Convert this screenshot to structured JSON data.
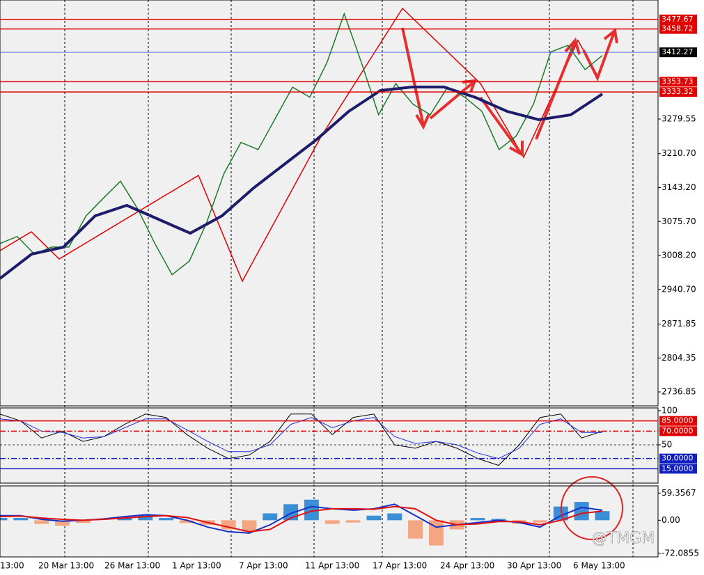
{
  "chart_data": [
    {
      "type": "line",
      "panel": "main",
      "ylim": [
        2709.2,
        3516.3
      ],
      "yticks": [
        {
          "value": 3279.55,
          "label": "3279.55"
        },
        {
          "value": 3210.7,
          "label": "3210.70"
        },
        {
          "value": 3143.2,
          "label": "3143.20"
        },
        {
          "value": 3075.7,
          "label": "3075.70"
        },
        {
          "value": 3008.2,
          "label": "3008.20"
        },
        {
          "value": 2940.7,
          "label": "2940.70"
        },
        2871.85,
        2804.35,
        2736.85
      ],
      "levels": [
        {
          "value": 3477.67,
          "label": "3477.67",
          "color": "#e00000"
        },
        {
          "value": 3458.72,
          "label": "3458.72",
          "color": "#e00000"
        },
        {
          "value": 3412.27,
          "label": "3412.27",
          "color": "#3050e0"
        },
        {
          "value": 3353.73,
          "label": "3353.73",
          "color": "#e00000"
        },
        {
          "value": 3333.32,
          "label": "3333.32",
          "color": "#e00000"
        }
      ],
      "series": [
        {
          "color": "#1b7a2a",
          "width": 1.5,
          "values": [
            3032,
            3046,
            3011,
            3025,
            3025,
            3087,
            3122,
            3156,
            3101,
            3032,
            2970,
            2997,
            3073,
            3170,
            3233,
            3219,
            3281,
            3343,
            3323,
            3392,
            3489,
            3392,
            3288,
            3350,
            3309,
            3288,
            3343,
            3323,
            3295,
            3219,
            3246,
            3309,
            3413,
            3426,
            3378,
            3406
          ]
        },
        {
          "color": "#1c1c6b",
          "width": 4,
          "values": [
            2962.5,
            3011,
            3024.8,
            3087,
            3107.9,
            3080.2,
            3052.5,
            3087,
            3142.5,
            3191,
            3239.5,
            3294.8,
            3336.3,
            3343.3,
            3343.3,
            3322.5,
            3294.8,
            3278.2,
            3287.9,
            3329.4
          ]
        }
      ]
    },
    {
      "type": "line",
      "panel": "stoch",
      "ylim": [
        -6,
        104
      ],
      "yticks": [
        100,
        50
      ],
      "levels": [
        {
          "value": 85,
          "label": "85.0000",
          "color": "#e00000"
        },
        {
          "value": 70,
          "label": "70.0000",
          "color": "#e00000"
        },
        {
          "value": 30,
          "label": "30.0000",
          "color": "#1020c0"
        },
        {
          "value": 15,
          "label": "15.0000",
          "color": "#1020c0"
        }
      ],
      "series": [
        {
          "color": "#000000",
          "width": 1,
          "values": [
            95,
            85,
            60,
            70,
            55,
            62,
            80,
            95,
            90,
            65,
            45,
            30,
            35,
            55,
            95,
            95,
            65,
            90,
            95,
            50,
            45,
            55,
            45,
            30,
            20,
            50,
            90,
            95,
            60,
            70
          ]
        },
        {
          "color": "#2030e0",
          "width": 1,
          "values": [
            88,
            85,
            70,
            68,
            60,
            62,
            75,
            88,
            88,
            72,
            55,
            40,
            40,
            50,
            80,
            90,
            75,
            85,
            90,
            62,
            52,
            55,
            50,
            38,
            30,
            45,
            80,
            88,
            68,
            68
          ]
        }
      ]
    },
    {
      "type": "bar",
      "panel": "macd",
      "ylim": [
        -80,
        75
      ],
      "yticks": [
        59.3567,
        {
          "value": 0,
          "label": "0.00"
        },
        -72.0855
      ],
      "pos_color": "#3a8fd6",
      "neg_color": "#f4a582",
      "values": [
        5,
        5,
        -8,
        -12,
        -6,
        0,
        6,
        12,
        5,
        -6,
        -10,
        -20,
        -25,
        15,
        35,
        45,
        -8,
        -5,
        10,
        15,
        -40,
        -55,
        -20,
        5,
        3,
        -8,
        -5,
        30,
        40,
        20
      ],
      "series": [
        {
          "color": "#1530c8",
          "width": 2,
          "values": [
            10,
            10,
            2,
            -2,
            0,
            3,
            8,
            12,
            10,
            0,
            -15,
            -25,
            -28,
            -10,
            15,
            30,
            25,
            22,
            25,
            35,
            10,
            -15,
            -10,
            -5,
            0,
            -5,
            -15,
            10,
            28,
            22
          ]
        },
        {
          "color": "#e01010",
          "width": 2,
          "values": [
            8,
            9,
            5,
            2,
            0,
            2,
            5,
            8,
            10,
            6,
            -5,
            -15,
            -25,
            -20,
            5,
            20,
            25,
            25,
            24,
            30,
            25,
            0,
            -10,
            -8,
            -3,
            -3,
            -10,
            0,
            15,
            20
          ]
        }
      ]
    }
  ],
  "x_labels": [
    "13:00",
    "20 Mar 13:00",
    "26 Mar 13:00",
    "1 Apr 13:00",
    "7 Apr 13:00",
    "11 Apr 13:00",
    "17 Apr 13:00",
    "24 Apr 13:00",
    "30 Apr 13:00",
    "6 May 13:00"
  ],
  "watermark": "@TMGM"
}
